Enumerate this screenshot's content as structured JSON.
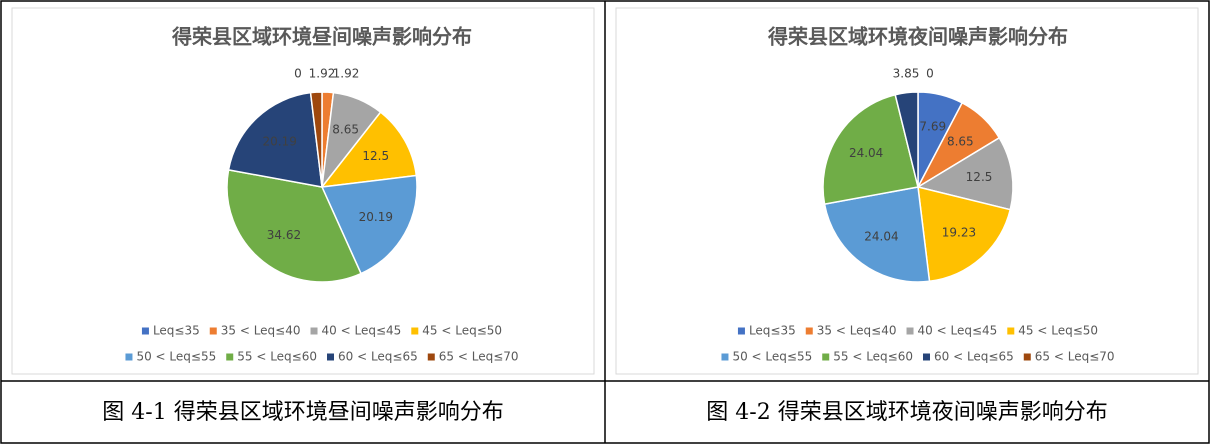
{
  "chart_data": [
    {
      "type": "pie",
      "title": "得荣县区域环境昼间噪声影响分布",
      "categories": [
        "Leq≤35",
        "35 < Leq≤40",
        "40 < Leq≤45",
        "45 < Leq≤50",
        "50 < Leq≤55",
        "55 < Leq≤60",
        "60 < Leq≤65",
        "65 < Leq≤70"
      ],
      "colors": [
        "#4472c4",
        "#ed7d31",
        "#a5a5a5",
        "#ffc000",
        "#5b9bd5",
        "#70ad47",
        "#264478",
        "#9e480e"
      ],
      "values": [
        0,
        1.92,
        8.65,
        12.5,
        20.19,
        34.62,
        20.19,
        1.92
      ]
    },
    {
      "type": "pie",
      "title": "得荣县区域环境夜间噪声影响分布",
      "categories": [
        "Leq≤35",
        "35 < Leq≤40",
        "40 < Leq≤45",
        "45 < Leq≤50",
        "50 < Leq≤55",
        "55 < Leq≤60",
        "60 < Leq≤65",
        "65 < Leq≤70"
      ],
      "colors": [
        "#4472c4",
        "#ed7d31",
        "#a5a5a5",
        "#ffc000",
        "#5b9bd5",
        "#70ad47",
        "#264478",
        "#9e480e"
      ],
      "values": [
        7.69,
        8.65,
        12.5,
        19.23,
        24.04,
        24.04,
        3.85,
        0
      ]
    }
  ],
  "captions": [
    "图 4-1 得荣县区域环境昼间噪声影响分布",
    "图 4-2 得荣县区域环境夜间噪声影响分布"
  ]
}
